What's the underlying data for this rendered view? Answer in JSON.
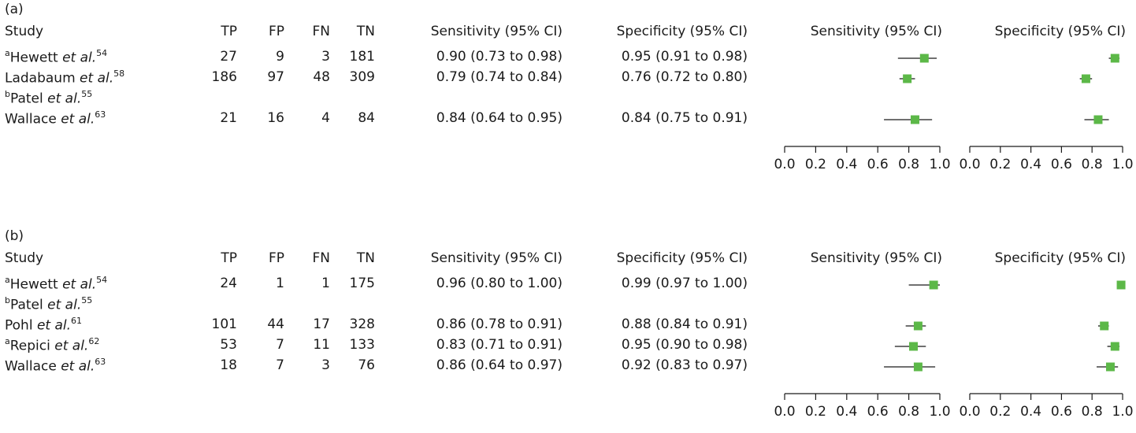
{
  "colors": {
    "marker": "#5cb848",
    "line": "#1a1a1a",
    "text": "#1a1a1a"
  },
  "headers": {
    "study": "Study",
    "tp": "TP",
    "fp": "FP",
    "fn": "FN",
    "tn": "TN",
    "sens": "Sensitivity (95% CI)",
    "spec": "Specificity (95% CI)",
    "sens_plot": "Sensitivity (95% CI)",
    "spec_plot": "Specificity (95% CI)"
  },
  "chart_data": [
    {
      "type": "forest",
      "panel_label": "(a)",
      "xlim": [
        0,
        1
      ],
      "ticks": [
        "0.0",
        "0.2",
        "0.4",
        "0.6",
        "0.8",
        "1.0"
      ],
      "studies": [
        {
          "prefix": "a",
          "author": "Hewett",
          "etal": "et al.",
          "ref": "54",
          "tp": "27",
          "fp": "9",
          "fn": "3",
          "tn": "181",
          "sens_text": "0.90 (0.73 to 0.98)",
          "spec_text": "0.95 (0.91 to 0.98)",
          "sens": [
            0.9,
            0.73,
            0.98
          ],
          "spec": [
            0.95,
            0.91,
            0.98
          ]
        },
        {
          "prefix": "",
          "author": "Ladabaum",
          "etal": "et al.",
          "ref": "58",
          "tp": "186",
          "fp": "97",
          "fn": "48",
          "tn": "309",
          "sens_text": "0.79 (0.74 to 0.84)",
          "spec_text": "0.76 (0.72 to 0.80)",
          "sens": [
            0.79,
            0.74,
            0.84
          ],
          "spec": [
            0.76,
            0.72,
            0.8
          ]
        },
        {
          "prefix": "b",
          "author": "Patel",
          "etal": "et al.",
          "ref": "55",
          "tp": "",
          "fp": "",
          "fn": "",
          "tn": "",
          "sens_text": "",
          "spec_text": "",
          "sens": null,
          "spec": null
        },
        {
          "prefix": "",
          "author": "Wallace",
          "etal": "et al.",
          "ref": "63",
          "tp": "21",
          "fp": "16",
          "fn": "4",
          "tn": "84",
          "sens_text": "0.84 (0.64 to 0.95)",
          "spec_text": "0.84 (0.75 to 0.91)",
          "sens": [
            0.84,
            0.64,
            0.95
          ],
          "spec": [
            0.84,
            0.75,
            0.91
          ]
        }
      ]
    },
    {
      "type": "forest",
      "panel_label": "(b)",
      "xlim": [
        0,
        1
      ],
      "ticks": [
        "0.0",
        "0.2",
        "0.4",
        "0.6",
        "0.8",
        "1.0"
      ],
      "studies": [
        {
          "prefix": "a",
          "author": "Hewett",
          "etal": "et al.",
          "ref": "54",
          "tp": "24",
          "fp": "1",
          "fn": "1",
          "tn": "175",
          "sens_text": "0.96 (0.80 to 1.00)",
          "spec_text": "0.99 (0.97 to 1.00)",
          "sens": [
            0.96,
            0.8,
            1.0
          ],
          "spec": [
            0.99,
            0.97,
            1.0
          ]
        },
        {
          "prefix": "b",
          "author": "Patel",
          "etal": "et al.",
          "ref": "55",
          "tp": "",
          "fp": "",
          "fn": "",
          "tn": "",
          "sens_text": "",
          "spec_text": "",
          "sens": null,
          "spec": null
        },
        {
          "prefix": "",
          "author": "Pohl",
          "etal": "et al.",
          "ref": "61",
          "tp": "101",
          "fp": "44",
          "fn": "17",
          "tn": "328",
          "sens_text": "0.86 (0.78 to 0.91)",
          "spec_text": "0.88 (0.84 to 0.91)",
          "sens": [
            0.86,
            0.78,
            0.91
          ],
          "spec": [
            0.88,
            0.84,
            0.91
          ]
        },
        {
          "prefix": "a",
          "author": "Repici",
          "etal": "et al.",
          "ref": "62",
          "tp": "53",
          "fp": "7",
          "fn": "11",
          "tn": "133",
          "sens_text": "0.83 (0.71 to 0.91)",
          "spec_text": "0.95 (0.90 to 0.98)",
          "sens": [
            0.83,
            0.71,
            0.91
          ],
          "spec": [
            0.95,
            0.9,
            0.98
          ]
        },
        {
          "prefix": "",
          "author": "Wallace",
          "etal": "et al.",
          "ref": "63",
          "tp": "18",
          "fp": "7",
          "fn": "3",
          "tn": "76",
          "sens_text": "0.86 (0.64 to 0.97)",
          "spec_text": "0.92 (0.83 to 0.97)",
          "sens": [
            0.86,
            0.64,
            0.97
          ],
          "spec": [
            0.92,
            0.83,
            0.97
          ]
        }
      ]
    }
  ]
}
